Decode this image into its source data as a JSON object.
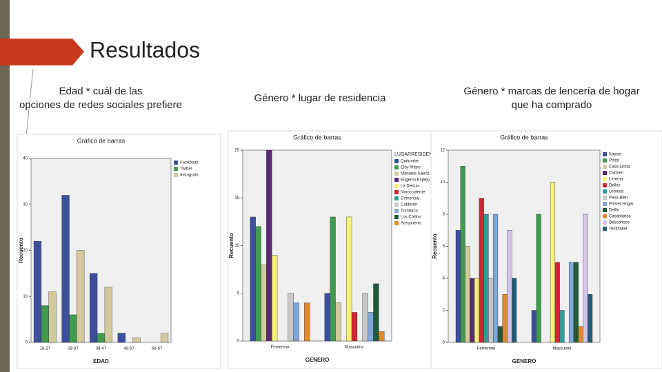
{
  "title": "Resultados",
  "captions": [
    "Edad * cuál de las opciones de redes sociales prefiere",
    "Género * lugar de residencia",
    "Género * marcas de lencería de hogar que ha comprado"
  ],
  "chart_data": [
    {
      "type": "bar",
      "title": "Gráfico de barras",
      "x_label": "EDAD",
      "y_label": "Recuento",
      "categories": [
        "18-27",
        "28-37",
        "38-47",
        "48-57",
        "58-67"
      ],
      "ylim": [
        0,
        40
      ],
      "yticks": [
        0,
        10,
        20,
        30,
        40
      ],
      "grid": false,
      "legend": "top-right",
      "series": [
        {
          "name": "Facebook",
          "color": "#3b4f9e",
          "values": [
            22,
            32,
            15,
            2,
            0
          ]
        },
        {
          "name": "Twitter",
          "color": "#3f9c4f",
          "values": [
            8,
            6,
            2,
            0,
            0
          ]
        },
        {
          "name": "Instagram",
          "color": "#d3c99c",
          "values": [
            11,
            20,
            12,
            1,
            2
          ]
        }
      ]
    },
    {
      "type": "bar",
      "title": "Gráfico de barras",
      "x_label": "GENERO",
      "y_label": "Recuento",
      "categories": [
        "Femenino",
        "Masculino"
      ],
      "legend_title": "LUGARRESIDEN",
      "ylim": [
        0,
        20
      ],
      "yticks": [
        0,
        5,
        10,
        15,
        20
      ],
      "grid": false,
      "legend": "top-right",
      "series": [
        {
          "name": "Quitumbe",
          "color": "#3b4f9e",
          "values": [
            13,
            5
          ]
        },
        {
          "name": "Eloy Alfaro",
          "color": "#3f9c4f",
          "values": [
            12,
            13
          ]
        },
        {
          "name": "Manuela Saenz",
          "color": "#d3c99c",
          "values": [
            8,
            4
          ]
        },
        {
          "name": "Eugenio Espejo",
          "color": "#5b2a74",
          "values": [
            20,
            0
          ]
        },
        {
          "name": "La Delicia",
          "color": "#f7f17a",
          "values": [
            9,
            13
          ]
        },
        {
          "name": "Noroccidente",
          "color": "#d0262f",
          "values": [
            0,
            3
          ]
        },
        {
          "name": "Comercial",
          "color": "#2f9c96",
          "values": [
            0,
            0
          ]
        },
        {
          "name": "Calderón",
          "color": "#c8c8c8",
          "values": [
            5,
            5
          ]
        },
        {
          "name": "Tumbaco",
          "color": "#7fa7d8",
          "values": [
            4,
            3
          ]
        },
        {
          "name": "Los Chillos",
          "color": "#1f5a3a",
          "values": [
            0,
            6
          ]
        },
        {
          "name": "Aeropuerto",
          "color": "#e08a2a",
          "values": [
            4,
            1
          ]
        }
      ]
    },
    {
      "type": "bar",
      "title": "Gráfico de barras",
      "x_label": "GENERO",
      "y_label": "Recuento",
      "categories": [
        "Femenino",
        "Masculino"
      ],
      "ylim": [
        0,
        12
      ],
      "yticks": [
        0,
        2,
        4,
        6,
        8,
        10,
        12
      ],
      "grid": false,
      "legend": "top-right",
      "series": [
        {
          "name": "Kayser",
          "color": "#3b4f9e",
          "values": [
            7,
            2
          ]
        },
        {
          "name": "Pinzo",
          "color": "#3f9c4f",
          "values": [
            11,
            8
          ]
        },
        {
          "name": "Casa Linda",
          "color": "#d3c99c",
          "values": [
            6,
            0
          ]
        },
        {
          "name": "Carmen",
          "color": "#5b2a74",
          "values": [
            4,
            0
          ]
        },
        {
          "name": "Lenerta",
          "color": "#f7f17a",
          "values": [
            4,
            10
          ]
        },
        {
          "name": "Dellex",
          "color": "#d0262f",
          "values": [
            9,
            5
          ]
        },
        {
          "name": "Leonisa",
          "color": "#2f9c96",
          "values": [
            8,
            2
          ]
        },
        {
          "name": "Pasa Bien",
          "color": "#c8c8c8",
          "values": [
            4,
            0
          ]
        },
        {
          "name": "Primer Hogar",
          "color": "#7fa7d8",
          "values": [
            8,
            5
          ]
        },
        {
          "name": "Delfin",
          "color": "#1f5a3a",
          "values": [
            1,
            5
          ]
        },
        {
          "name": "Casablanca",
          "color": "#e08a2a",
          "values": [
            3,
            1
          ]
        },
        {
          "name": "Desconoce",
          "color": "#d6c3e8",
          "values": [
            7,
            8
          ]
        },
        {
          "name": "Textiltaller",
          "color": "#245a78",
          "values": [
            4,
            3
          ]
        }
      ]
    }
  ]
}
